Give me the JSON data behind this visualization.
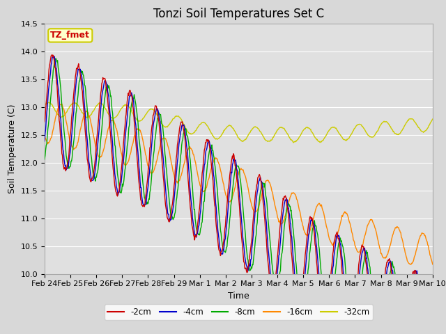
{
  "title": "Tonzi Soil Temperatures Set C",
  "xlabel": "Time",
  "ylabel": "Soil Temperature (C)",
  "ylim": [
    10.0,
    14.5
  ],
  "fig_bg_color": "#d8d8d8",
  "plot_bg_color": "#e0e0e0",
  "legend_label": "TZ_fmet",
  "legend_bg": "#ffffcc",
  "legend_border": "#cccc00",
  "line_colors": {
    "-2cm": "#cc0000",
    "-4cm": "#0000cc",
    "-8cm": "#00aa00",
    "-16cm": "#ff8800",
    "-32cm": "#cccc00"
  },
  "xtick_labels": [
    "Feb 24",
    "Feb 25",
    "Feb 26",
    "Feb 27",
    "Feb 28",
    "Feb 29",
    "Mar 1",
    "Mar 2",
    "Mar 3",
    "Mar 4",
    "Mar 5",
    "Mar 6",
    "Mar 7",
    "Mar 8",
    "Mar 9",
    "Mar 10"
  ],
  "grid_color": "#ffffff",
  "title_fontsize": 12,
  "label_fontsize": 9,
  "tick_fontsize": 8
}
